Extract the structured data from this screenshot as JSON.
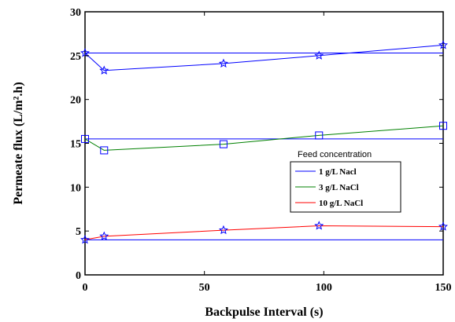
{
  "chart_data": {
    "type": "line",
    "title": "",
    "xlabel": "Backpulse Interval (s)",
    "ylabel": "Permeate flux (L/m².h)",
    "xlim": [
      0,
      150
    ],
    "ylim": [
      0,
      30
    ],
    "xticks": [
      0,
      50,
      100,
      150
    ],
    "yticks": [
      0,
      5,
      10,
      15,
      20,
      25,
      30
    ],
    "grid": false,
    "legend_title": "Feed concentration",
    "legend_position": "center-right",
    "series": [
      {
        "name": "1 g/L Nacl",
        "color": "#0000ff",
        "marker": "star",
        "x": [
          0,
          8,
          58,
          98,
          150
        ],
        "y": [
          25.3,
          23.3,
          24.1,
          25.0,
          26.2
        ],
        "baseline": 25.3
      },
      {
        "name": "3 g/L NaCl",
        "color": "#008000",
        "marker": "square",
        "x": [
          0,
          8,
          58,
          98,
          150
        ],
        "y": [
          15.5,
          14.2,
          14.9,
          15.9,
          17.0
        ],
        "baseline": 15.5
      },
      {
        "name": "10 g/L NaCl",
        "color": "#ff0000",
        "marker": "star",
        "x": [
          0,
          8,
          58,
          98,
          150
        ],
        "y": [
          4.0,
          4.4,
          5.1,
          5.6,
          5.5
        ],
        "baseline": 4.0
      }
    ]
  }
}
